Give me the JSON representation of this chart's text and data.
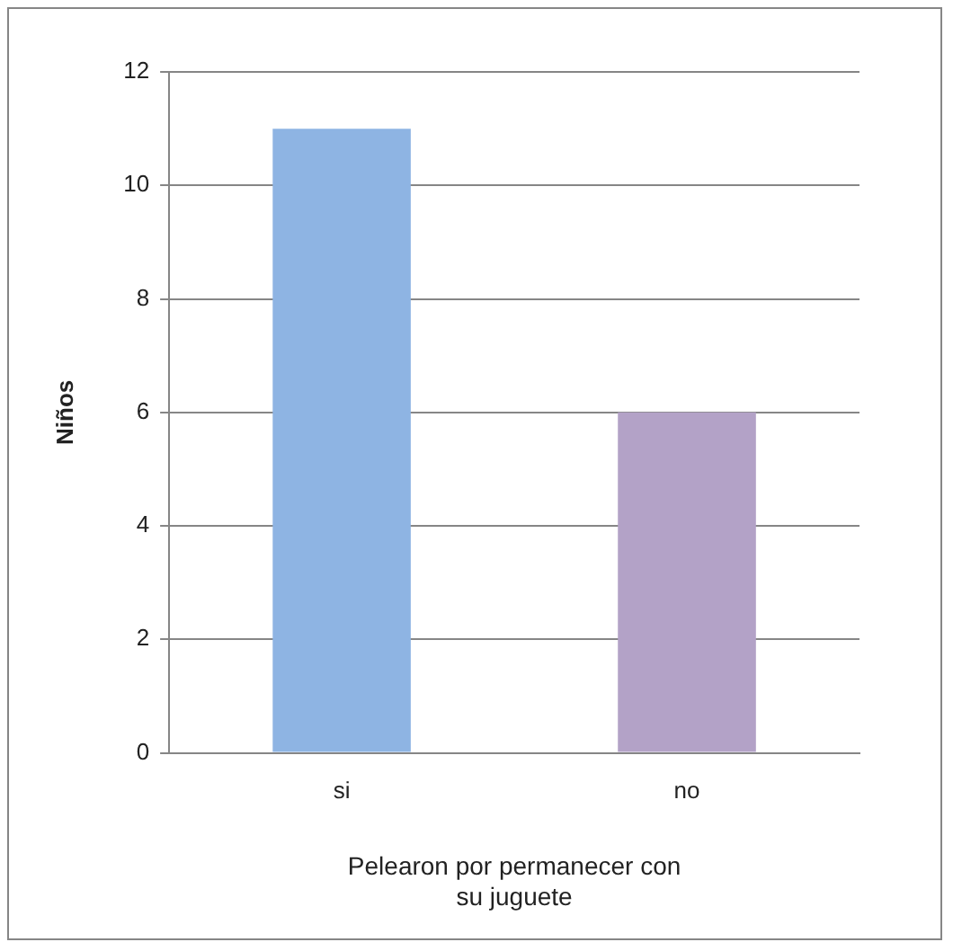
{
  "chart_data": {
    "type": "bar",
    "xlabel": "Pelearon por permanecer con su juguete",
    "ylabel": "Niños",
    "categories": [
      "si",
      "no"
    ],
    "values": [
      11,
      6
    ],
    "colors": [
      "#8eb4e3",
      "#b3a2c7"
    ],
    "ylim": [
      0,
      12
    ],
    "yticks": [
      0,
      2,
      4,
      6,
      8,
      10,
      12
    ],
    "grid": "y",
    "legend": false
  }
}
